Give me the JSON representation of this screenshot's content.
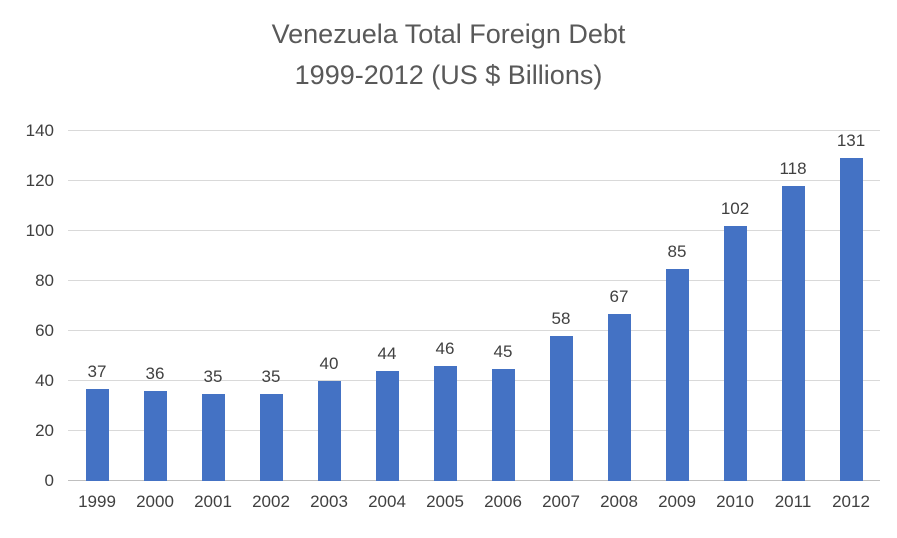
{
  "chart_data": {
    "type": "bar",
    "title_line1": "Venezuela Total Foreign Debt",
    "title_line2": "1999-2012 (US $ Billions)",
    "categories": [
      "1999",
      "2000",
      "2001",
      "2002",
      "2003",
      "2004",
      "2005",
      "2006",
      "2007",
      "2008",
      "2009",
      "2010",
      "2011",
      "2012"
    ],
    "values": [
      37,
      36,
      35,
      35,
      40,
      44,
      46,
      45,
      58,
      67,
      85,
      102,
      118,
      131
    ],
    "xlabel": "",
    "ylabel": "",
    "ylim": [
      0,
      140
    ],
    "ytick_step": 20,
    "grid": true,
    "legend": "none",
    "bar_color": "#4472C4",
    "label_color": "#404040",
    "title_color": "#595959",
    "gridline_color": "#d9d9d9"
  }
}
